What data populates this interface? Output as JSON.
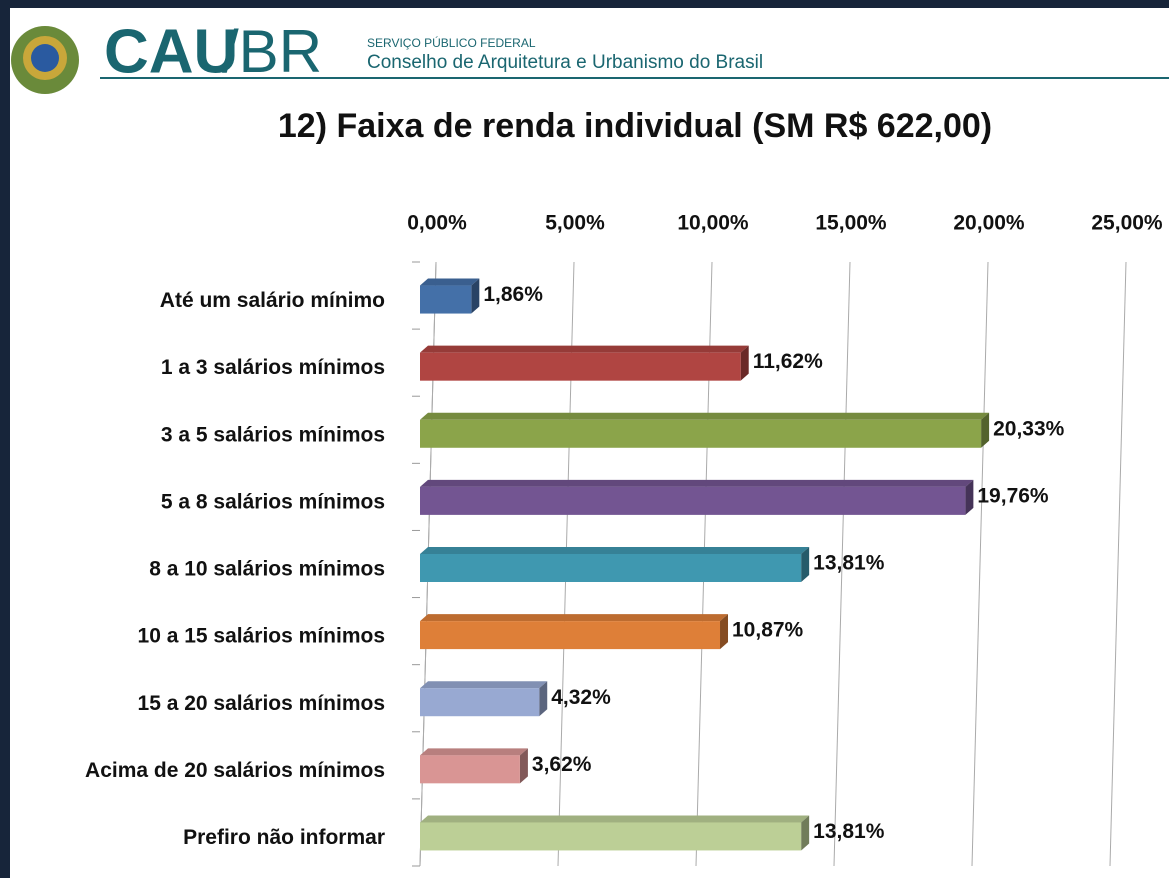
{
  "header": {
    "logo": "CAU",
    "logo_suffix": "/BR",
    "service": "SERVIÇO PÚBLICO FEDERAL",
    "council": "Conselho de Arquitetura e Urbanismo do Brasil"
  },
  "chart_data": {
    "type": "bar",
    "orientation": "horizontal",
    "title": "12)  Faixa de renda individual (SM R$ 622,00)",
    "categories": [
      "Até um salário mínimo",
      "1 a 3 salários mínimos",
      "3 a 5 salários mínimos",
      "5 a 8 salários mínimos",
      "8 a 10 salários mínimos",
      "10 a 15 salários mínimos",
      "15 a 20 salários mínimos",
      "Acima de 20 salários mínimos",
      "Prefiro não informar"
    ],
    "values": [
      1.86,
      11.62,
      20.33,
      19.76,
      13.81,
      10.87,
      4.32,
      3.62,
      13.81
    ],
    "value_labels": [
      "1,86%",
      "11,62%",
      "20,33%",
      "19,76%",
      "13,81%",
      "10,87%",
      "4,32%",
      "3,62%",
      "13,81%"
    ],
    "colors": [
      "#4470a8",
      "#b04542",
      "#8ba44a",
      "#735592",
      "#3f98b0",
      "#de7f38",
      "#98a9d2",
      "#d99594",
      "#bccf96"
    ],
    "xlim": [
      0,
      25
    ],
    "xticks": [
      {
        "value": 0,
        "label": "0,00%"
      },
      {
        "value": 5,
        "label": "5,00%"
      },
      {
        "value": 10,
        "label": "10,00%"
      },
      {
        "value": 15,
        "label": "15,00%"
      },
      {
        "value": 20,
        "label": "20,00%"
      },
      {
        "value": 25,
        "label": "25,00%"
      }
    ],
    "grid": true
  }
}
